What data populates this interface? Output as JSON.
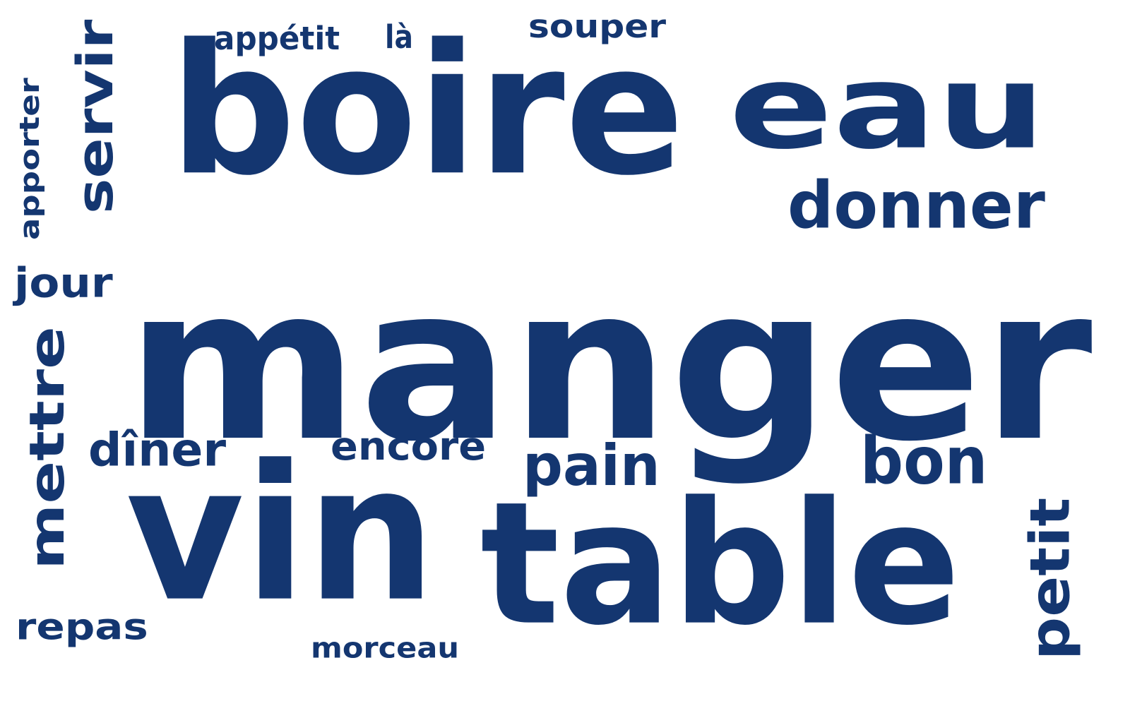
{
  "color": "#143670",
  "background": "#ffffff",
  "words": [
    {
      "name": "word-manger",
      "text": "manger"
    },
    {
      "name": "word-boire",
      "text": "boire"
    },
    {
      "name": "word-eau",
      "text": "eau"
    },
    {
      "name": "word-vin",
      "text": "vin"
    },
    {
      "name": "word-table",
      "text": "table"
    },
    {
      "name": "word-donner",
      "text": "donner"
    },
    {
      "name": "word-servir",
      "text": "servir"
    },
    {
      "name": "word-mettre",
      "text": "mettre"
    },
    {
      "name": "word-pain",
      "text": "pain"
    },
    {
      "name": "word-bon",
      "text": "bon"
    },
    {
      "name": "word-petit",
      "text": "petit"
    },
    {
      "name": "word-diner",
      "text": "dîner"
    },
    {
      "name": "word-encore",
      "text": "encore"
    },
    {
      "name": "word-apporter",
      "text": "apporter"
    },
    {
      "name": "word-jour",
      "text": "jour"
    },
    {
      "name": "word-repas",
      "text": "repas"
    },
    {
      "name": "word-souper",
      "text": "souper"
    },
    {
      "name": "word-appetit",
      "text": "appétit"
    },
    {
      "name": "word-la",
      "text": "là"
    },
    {
      "name": "word-morceau",
      "text": "morceau"
    }
  ]
}
